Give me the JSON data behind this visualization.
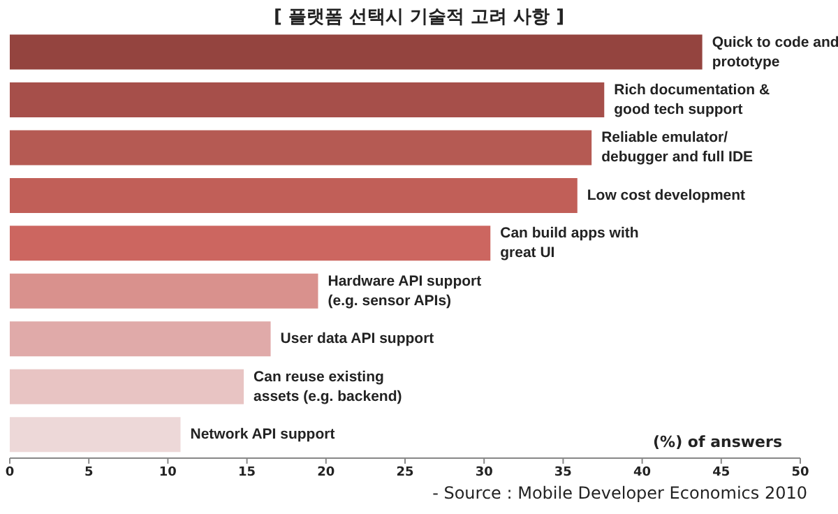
{
  "chart_data": {
    "type": "bar",
    "orientation": "horizontal",
    "title": "[ 플랫폼 선택시 기술적 고려 사항 ]",
    "xlabel": "(%) of answers",
    "categories": [
      "Quick to code and prototype",
      "Rich documentation & good tech support",
      "Reliable emulator/ debugger and full IDE",
      "Low cost development",
      "Can build apps with great UI",
      "Hardware API support (e.g. sensor APIs)",
      "User data API support",
      "Can reuse existing assets (e.g. backend)",
      "Network API support"
    ],
    "values": [
      43.8,
      37.6,
      36.8,
      35.9,
      30.4,
      19.5,
      16.5,
      14.8,
      10.8
    ],
    "colors": [
      "#94443f",
      "#a64f4a",
      "#b55a53",
      "#c15f58",
      "#cc6660",
      "#d9918d",
      "#e0aaa9",
      "#e8c4c3",
      "#edd8d8"
    ],
    "xlim": [
      0,
      50
    ],
    "xticks": [
      0,
      5,
      10,
      15,
      20,
      25,
      30,
      35,
      40,
      45,
      50
    ],
    "grid": false,
    "legend": false,
    "annotations": [
      "- Source : Mobile Developer Economics 2010"
    ]
  }
}
